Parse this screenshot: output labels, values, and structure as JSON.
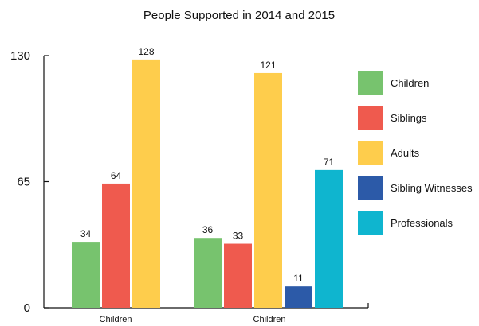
{
  "chart_data": {
    "type": "bar",
    "title": "People Supported in 2014 and 2015",
    "xlabel": "",
    "ylabel": "",
    "categories": [
      "Children",
      "Children"
    ],
    "ylim": [
      0,
      130
    ],
    "yticks": [
      "0",
      "65",
      "130"
    ],
    "legend_position": "right",
    "grid": false,
    "series": [
      {
        "name": "Children",
        "color": "#77c36e",
        "values": [
          34,
          36
        ]
      },
      {
        "name": "Siblings",
        "color": "#ef5a4e",
        "values": [
          64,
          33
        ]
      },
      {
        "name": "Adults",
        "color": "#fecd4c",
        "values": [
          128,
          121
        ]
      },
      {
        "name": "Sibling Witnesses",
        "color": "#2c5aa8",
        "values": [
          null,
          11
        ]
      },
      {
        "name": "Professionals",
        "color": "#0fb5cf",
        "values": [
          null,
          71
        ]
      }
    ]
  }
}
